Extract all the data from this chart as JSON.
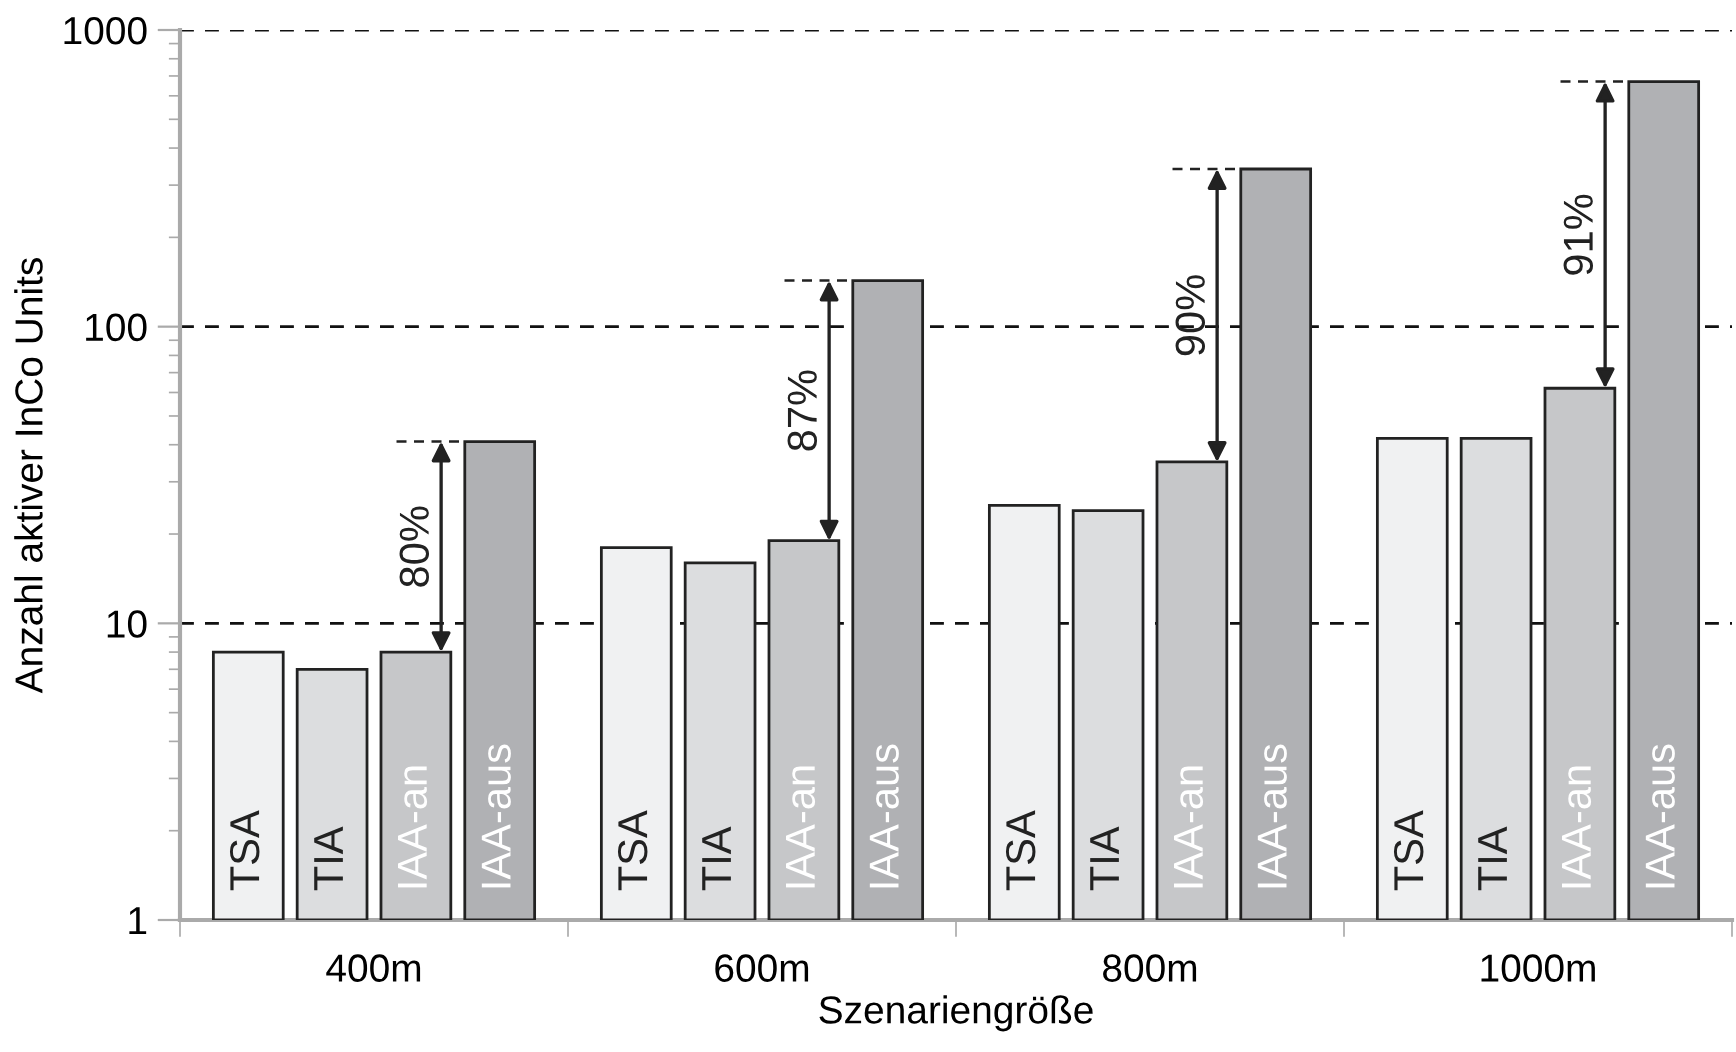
{
  "chart_data": {
    "type": "bar",
    "xlabel": "Szenariengröße",
    "ylabel": "Anzahl aktiver InCo Units",
    "categories": [
      "400m",
      "600m",
      "800m",
      "1000m"
    ],
    "series": [
      {
        "name": "TSA",
        "color": "#f0f1f2",
        "values": [
          8,
          18,
          25,
          42
        ]
      },
      {
        "name": "TIA",
        "color": "#dcdddf",
        "values": [
          7,
          16,
          24,
          42
        ]
      },
      {
        "name": "IAA-an",
        "color": "#c6c7c9",
        "values": [
          8,
          19,
          35,
          62
        ]
      },
      {
        "name": "IAA-aus",
        "color": "#b0b1b4",
        "values": [
          41,
          143,
          340,
          670
        ]
      }
    ],
    "annotations": [
      "80%",
      "87%",
      "90%",
      "91%"
    ],
    "log": "y",
    "ylim": [
      1,
      1000
    ],
    "yticks": [
      1,
      10,
      100,
      1000
    ],
    "grid": "y",
    "legend": false
  }
}
